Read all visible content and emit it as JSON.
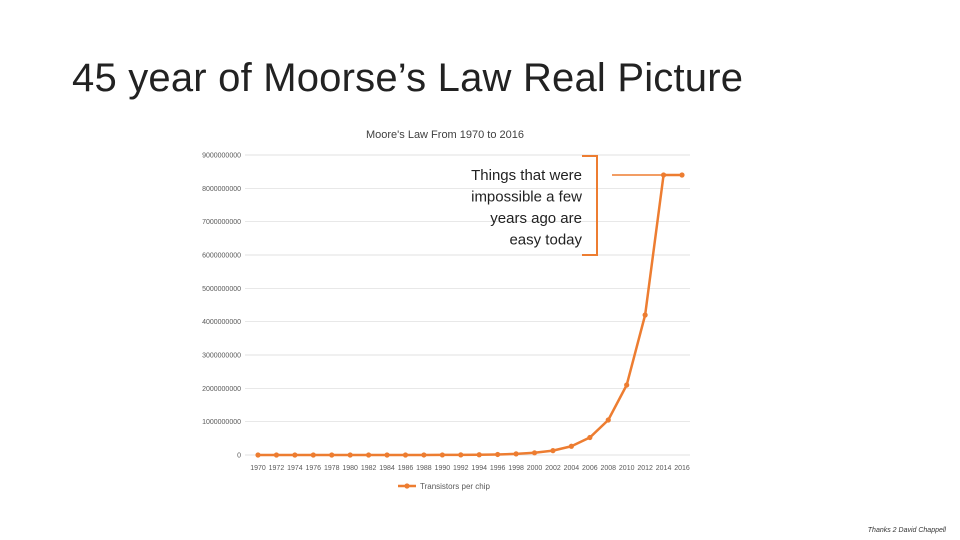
{
  "slide": {
    "title": "45 year of Moorse’s Law Real Picture",
    "footer": "Thanks 2 David Chappell"
  },
  "colors": {
    "series": "#ED7D31",
    "grid": "#D9D9D9",
    "text": "#595959"
  },
  "chart_data": {
    "type": "line",
    "title": "Moore's Law From 1970 to 2016",
    "xlabel": "",
    "ylabel": "",
    "ylim": [
      0,
      9000000000
    ],
    "yticks": [
      0,
      1000000000,
      2000000000,
      3000000000,
      4000000000,
      5000000000,
      6000000000,
      7000000000,
      8000000000,
      9000000000
    ],
    "grid": true,
    "legend": "bottom",
    "markers": true,
    "x": [
      1970,
      1972,
      1974,
      1976,
      1978,
      1980,
      1982,
      1984,
      1986,
      1988,
      1990,
      1992,
      1994,
      1996,
      1998,
      2000,
      2002,
      2004,
      2006,
      2008,
      2010,
      2012,
      2014,
      2016
    ],
    "series": [
      {
        "name": "Transistors per chip",
        "values": [
          2000,
          4000,
          8000,
          16000,
          32000,
          64000,
          128000,
          256000,
          512000,
          1000000,
          2000000,
          4000000,
          8000000,
          16000000,
          33000000,
          66000000,
          131000000,
          262000000,
          524000000,
          1050000000,
          2100000000,
          4200000000,
          8400000000,
          8400000000
        ]
      }
    ],
    "annotation": {
      "text": [
        "Things that were",
        "impossible a few",
        "years ago are",
        "easy today"
      ]
    }
  }
}
